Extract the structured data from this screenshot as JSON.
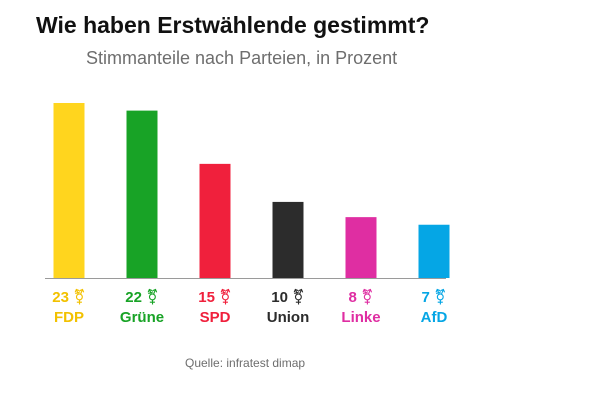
{
  "chart_data": {
    "type": "bar",
    "title": "Wie haben Erstwählende gestimmt?",
    "subtitle": "Stimmanteile nach Parteien, in Prozent",
    "categories": [
      "FDP",
      "Grüne",
      "SPD",
      "Union",
      "Linke",
      "AfD"
    ],
    "values": [
      23,
      22,
      15,
      10,
      8,
      7
    ],
    "value_suffix": "⚧",
    "colors": [
      "#ffd51e",
      "#18a326",
      "#f0203c",
      "#2c2c2c",
      "#df2ea2",
      "#05a6e5"
    ],
    "xlabel": "",
    "ylabel": "",
    "ylim": [
      0,
      23
    ],
    "grid": false,
    "source": "Quelle: infratest dimap"
  }
}
